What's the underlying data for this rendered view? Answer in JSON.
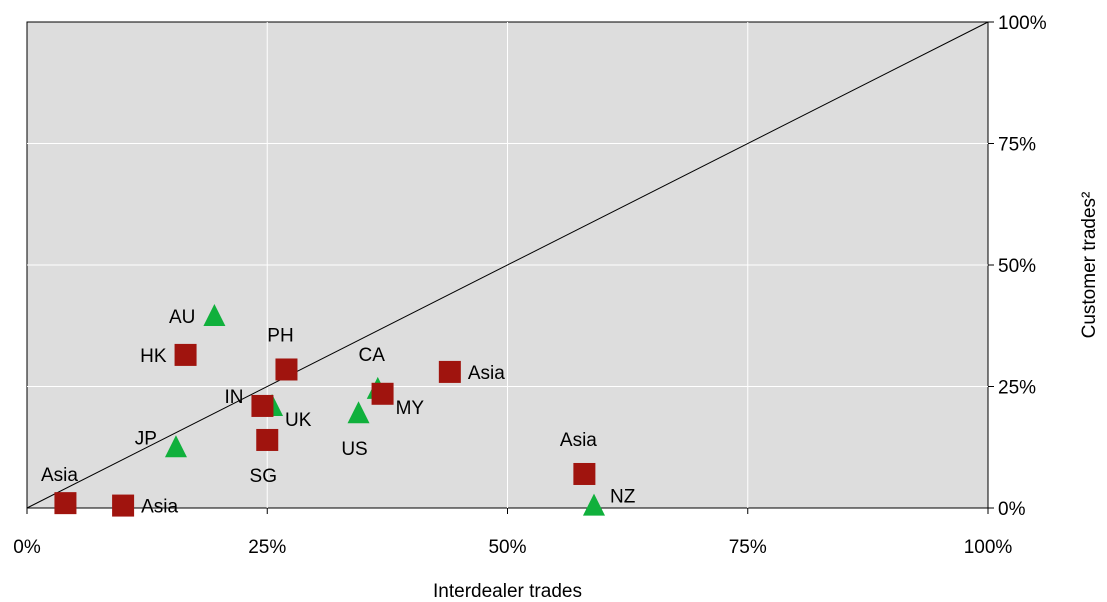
{
  "chart_data": {
    "type": "scatter",
    "xlabel": "Interdealer trades",
    "ylabel": "Customer trades²",
    "xlim": [
      0,
      100
    ],
    "ylim": [
      0,
      100
    ],
    "x_ticks": [
      0,
      25,
      50,
      75,
      100
    ],
    "y_ticks": [
      0,
      25,
      50,
      75,
      100
    ],
    "x_tick_labels": [
      "0%",
      "25%",
      "50%",
      "75%",
      "100%"
    ],
    "y_tick_labels": [
      "0%",
      "25%",
      "50%",
      "75%",
      "100%"
    ],
    "y_axis_side": "right",
    "grid": true,
    "reference_line": {
      "from": [
        0,
        0
      ],
      "to": [
        100,
        100
      ]
    },
    "plot_background": "#dddddd",
    "series": [
      {
        "marker": "square",
        "color": "#a0140e",
        "points": [
          {
            "label": "Asia",
            "x": 4,
            "y": 1,
            "label_pos": "above-left"
          },
          {
            "label": "Asia",
            "x": 10,
            "y": 0.5,
            "label_pos": "right"
          },
          {
            "label": "HK",
            "x": 16.5,
            "y": 31.5,
            "label_pos": "left"
          },
          {
            "label": "IN",
            "x": 24.5,
            "y": 21,
            "label_pos": "left-above"
          },
          {
            "label": "SG",
            "x": 25,
            "y": 14,
            "label_pos": "below"
          },
          {
            "label": "PH",
            "x": 27,
            "y": 28.5,
            "label_pos": "above"
          },
          {
            "label": "MY",
            "x": 37,
            "y": 23.5,
            "label_pos": "right-below"
          },
          {
            "label": "Asia",
            "x": 44,
            "y": 28,
            "label_pos": "right"
          },
          {
            "label": "Asia",
            "x": 58,
            "y": 7,
            "label_pos": "above"
          }
        ]
      },
      {
        "marker": "triangle",
        "color": "#10b03c",
        "points": [
          {
            "label": "AU",
            "x": 19.5,
            "y": 39.5,
            "label_pos": "left"
          },
          {
            "label": "JP",
            "x": 15.5,
            "y": 12.5,
            "label_pos": "left-above"
          },
          {
            "label": "UK",
            "x": 25.5,
            "y": 21,
            "label_pos": "right-below"
          },
          {
            "label": "US",
            "x": 34.5,
            "y": 19.5,
            "label_pos": "below"
          },
          {
            "label": "CA",
            "x": 36.5,
            "y": 24.5,
            "label_pos": "above"
          },
          {
            "label": "NZ",
            "x": 59,
            "y": 0.5,
            "label_pos": "right-above"
          }
        ]
      }
    ]
  }
}
